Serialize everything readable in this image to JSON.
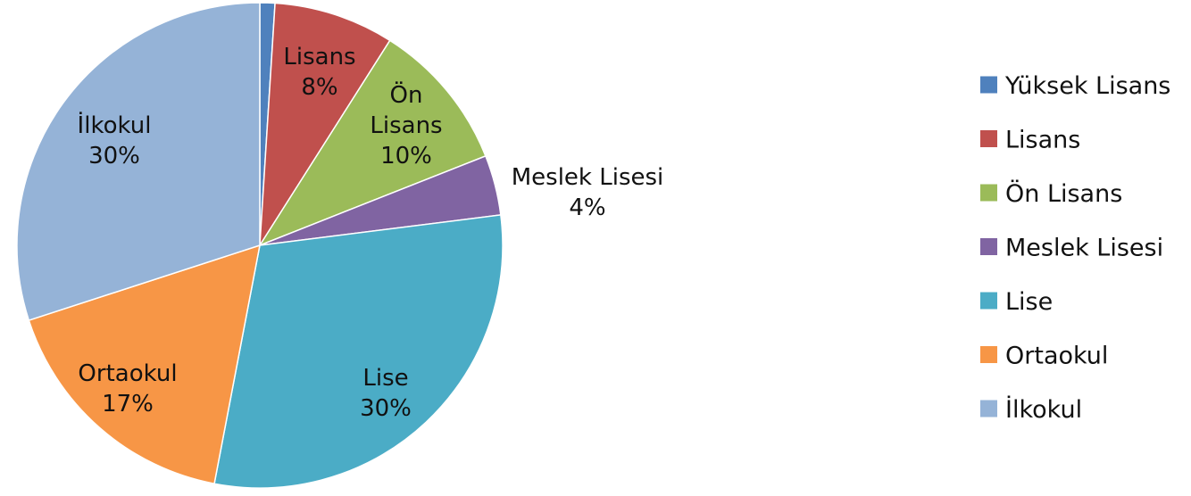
{
  "chart_data": {
    "type": "pie",
    "title": "",
    "slices": [
      {
        "name": "Yüksek Lisans",
        "value": 1,
        "label_lines": [],
        "color": "#4F81BD"
      },
      {
        "name": "Lisans",
        "value": 8,
        "label_lines": [
          "Lisans",
          "8%"
        ],
        "color": "#C0504D"
      },
      {
        "name": "Ön Lisans",
        "value": 10,
        "label_lines": [
          "Ön",
          "Lisans",
          "10%"
        ],
        "color": "#9BBB59"
      },
      {
        "name": "Meslek Lisesi",
        "value": 4,
        "label_lines": [
          "Meslek Lisesi",
          "4%"
        ],
        "color": "#8064A2"
      },
      {
        "name": "Lise",
        "value": 30,
        "label_lines": [
          "Lise",
          "30%"
        ],
        "color": "#4BACC6"
      },
      {
        "name": "Ortaokul",
        "value": 17,
        "label_lines": [
          "Ortaokul",
          "17%"
        ],
        "color": "#F79646"
      },
      {
        "name": "İlkokul",
        "value": 30,
        "label_lines": [
          "İlkokul",
          "30%"
        ],
        "color": "#95B3D7"
      }
    ],
    "legend": {
      "position": "right",
      "items": [
        "Yüksek Lisans",
        "Lisans",
        "Ön Lisans",
        "Meslek Lisesi",
        "Lise",
        "Ortaokul",
        "İlkokul"
      ]
    }
  }
}
